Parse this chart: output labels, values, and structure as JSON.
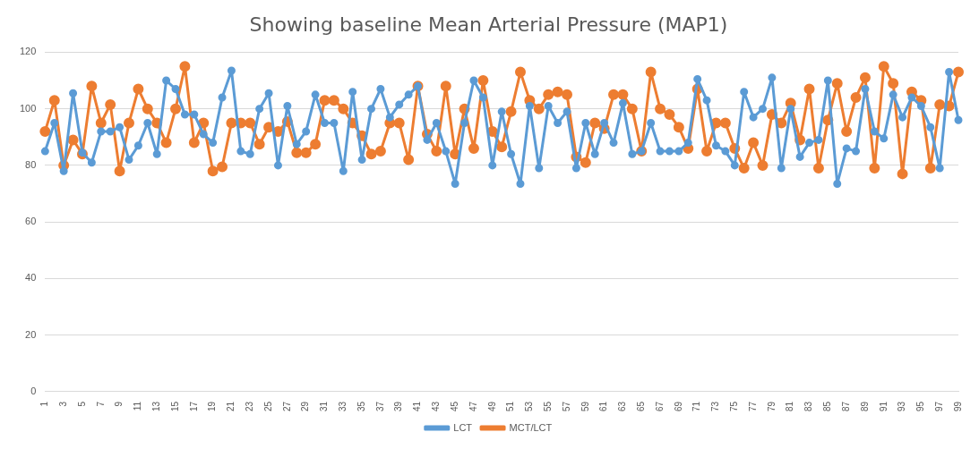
{
  "chart_data": {
    "type": "line",
    "title": "Showing baseline Mean Arterial Pressure (MAP1)",
    "categories": [
      "1",
      null,
      "3",
      null,
      "5",
      null,
      "7",
      null,
      "9",
      null,
      "11",
      null,
      "13",
      null,
      "15",
      null,
      "17",
      null,
      "19",
      null,
      "21",
      null,
      "23",
      null,
      "25",
      null,
      "27",
      null,
      "29",
      null,
      "31",
      null,
      "33",
      null,
      "35",
      null,
      "37",
      null,
      "39",
      null,
      "41",
      null,
      "43",
      null,
      "45",
      null,
      "47",
      null,
      "49",
      null,
      "51",
      null,
      "53",
      null,
      "55",
      null,
      "57",
      null,
      "59",
      null,
      "61",
      null,
      "63",
      null,
      "65",
      null,
      "67",
      null,
      "69",
      null,
      "71",
      null,
      "73",
      null,
      "75",
      null,
      "77",
      null,
      "79",
      null,
      "81",
      null,
      "83",
      null,
      "85",
      null,
      "87",
      null,
      "89",
      null,
      "91",
      null,
      "93",
      null,
      "95",
      null,
      "97",
      null,
      "99"
    ],
    "series": [
      {
        "name": "LCT",
        "color": "#5b9bd5",
        "values": [
          85,
          95,
          78,
          105.5,
          84.5,
          81,
          92,
          92,
          93.5,
          82,
          87,
          95,
          84,
          110,
          107,
          98,
          98,
          91,
          88,
          104,
          113.5,
          85,
          84,
          100,
          105.5,
          80,
          101,
          87.5,
          92,
          105,
          95,
          95,
          78,
          106,
          82,
          100,
          107,
          97,
          101.5,
          105,
          108,
          89,
          95,
          85,
          73.5,
          95,
          110,
          104,
          80,
          99,
          84,
          73.5,
          101,
          79,
          101,
          95,
          99,
          79,
          95,
          84,
          95,
          88,
          102,
          84,
          85,
          95,
          85,
          85,
          85,
          88,
          110.5,
          103,
          87,
          85,
          80,
          106,
          97,
          100,
          111,
          79,
          100,
          83,
          88,
          89,
          110,
          73.5,
          86,
          85,
          107,
          92,
          89.5,
          105,
          97,
          104,
          101,
          93.5,
          79,
          113,
          96
        ]
      },
      {
        "name": "MCT/LCT",
        "color": "#ed7d31",
        "values": [
          92,
          103,
          80,
          89,
          84,
          108,
          95,
          101.5,
          78,
          95,
          107,
          100,
          95,
          88,
          100,
          115,
          88,
          95,
          78,
          79.5,
          95,
          95,
          95,
          87.5,
          93.5,
          92,
          95.5,
          84.5,
          84.5,
          87.5,
          103,
          103,
          100,
          95,
          90.5,
          84,
          85,
          95,
          95,
          82,
          108,
          91,
          85,
          108,
          84,
          100,
          86,
          110,
          92,
          86.5,
          99,
          113,
          103,
          100,
          105,
          106,
          105,
          83,
          81,
          95,
          93,
          105,
          105,
          100,
          85,
          113,
          100,
          98,
          93.5,
          86,
          107,
          85,
          95,
          95,
          86,
          79,
          88,
          80,
          98,
          95,
          102,
          89,
          107,
          79,
          96,
          109,
          92,
          104,
          111,
          79,
          115,
          109,
          77,
          106,
          103,
          79,
          101.5,
          101,
          113
        ]
      }
    ],
    "ylim": [
      0,
      120
    ],
    "yticks": [
      0,
      20,
      40,
      60,
      80,
      100,
      120
    ],
    "grid": "y",
    "legend": "bottom",
    "marker": "circle",
    "line_style": "solid"
  }
}
